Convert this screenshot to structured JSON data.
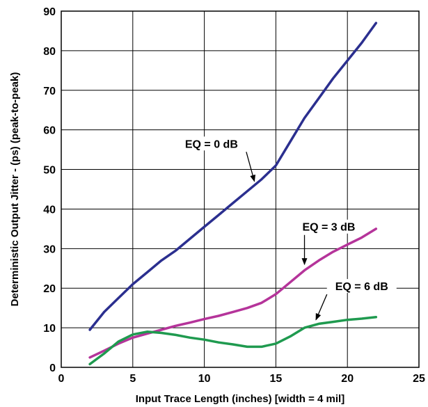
{
  "chart_data": {
    "type": "line",
    "title": "",
    "xlabel": "Input Trace Length (inches) [width = 4 mil]",
    "ylabel": "Deterministic Output Jitter -  (ps) (peak-to-peak)",
    "xlim": [
      0,
      25
    ],
    "ylim": [
      0,
      90
    ],
    "xticks": [
      "0",
      "5",
      "10",
      "15",
      "20",
      "25"
    ],
    "yticks": [
      "0",
      "10",
      "20",
      "30",
      "40",
      "50",
      "60",
      "70",
      "80",
      "90"
    ],
    "grid": true,
    "legend": "none",
    "series": [
      {
        "color": "#2b2f8f",
        "x": [
          2,
          3,
          4,
          5,
          6,
          7,
          8,
          9,
          10,
          11,
          12,
          13,
          14,
          15,
          16,
          17,
          18,
          19,
          20,
          21,
          22
        ],
        "y": [
          9.5,
          14,
          17.5,
          21,
          24,
          27,
          29.5,
          32.5,
          35.5,
          38.5,
          41.5,
          44.5,
          47.5,
          51,
          57,
          63,
          68,
          73,
          77.5,
          82,
          87
        ]
      },
      {
        "color": "#b5349a",
        "x": [
          2,
          3,
          4,
          5,
          6,
          7,
          8,
          9,
          10,
          11,
          12,
          13,
          14,
          15,
          16,
          17,
          18,
          19,
          20,
          21,
          22
        ],
        "y": [
          2.5,
          4.2,
          6,
          7.5,
          8.5,
          9.5,
          10.5,
          11.3,
          12.2,
          13,
          14,
          15,
          16.3,
          18.5,
          21.5,
          24.5,
          27,
          29.2,
          31,
          32.8,
          35
        ]
      },
      {
        "color": "#1f9a4f",
        "x": [
          2,
          3,
          4,
          5,
          6,
          7,
          8,
          9,
          10,
          11,
          12,
          13,
          14,
          15,
          16,
          17,
          18,
          19,
          20,
          21,
          22
        ],
        "y": [
          0.8,
          3.5,
          6.5,
          8.3,
          9,
          8.7,
          8.2,
          7.5,
          7,
          6.3,
          5.8,
          5.2,
          5.2,
          6,
          7.8,
          10,
          11,
          11.5,
          12,
          12.3,
          12.7
        ]
      }
    ],
    "annotations": [
      {
        "text": "EQ = 0 dB",
        "x": 10.5,
        "y": 55.5,
        "arrow_to": [
          13.5,
          47
        ]
      },
      {
        "text": "EQ = 3 dB",
        "x": 18.7,
        "y": 34.5,
        "arrow_to": [
          17,
          26
        ]
      },
      {
        "text": "EQ = 6 dB",
        "x": 21,
        "y": 19.5,
        "arrow_to": [
          17.8,
          12
        ]
      }
    ]
  }
}
